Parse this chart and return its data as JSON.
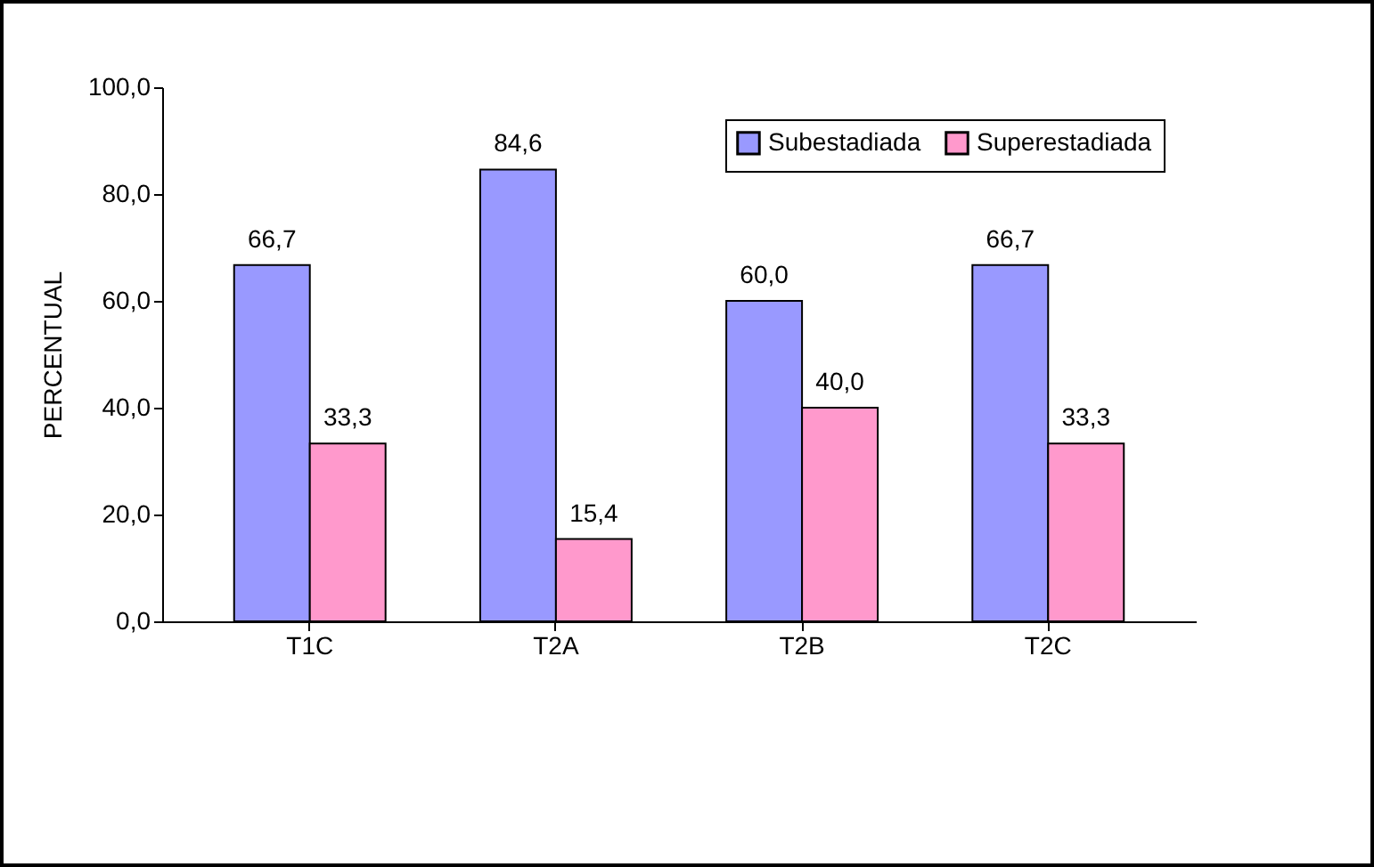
{
  "chart_data": {
    "type": "bar",
    "ylabel": "PERCENTUAL",
    "categories": [
      "T1C",
      "T2A",
      "T2B",
      "T2C"
    ],
    "series": [
      {
        "name": "Subestadiada",
        "color": "#9999ff",
        "values": [
          66.7,
          84.6,
          60.0,
          66.7
        ],
        "value_labels": [
          "66,7",
          "84,6",
          "60,0",
          "66,7"
        ]
      },
      {
        "name": "Superestadiada",
        "color": "#ff99cc",
        "values": [
          33.3,
          15.4,
          40.0,
          33.3
        ],
        "value_labels": [
          "33,3",
          "15,4",
          "40,0",
          "33,3"
        ]
      }
    ],
    "ylim": [
      0,
      100
    ],
    "yticks": [
      {
        "value": 0,
        "label": "0,0"
      },
      {
        "value": 20,
        "label": "20,0"
      },
      {
        "value": 40,
        "label": "40,0"
      },
      {
        "value": 60,
        "label": "60,0"
      },
      {
        "value": 80,
        "label": "80,0"
      },
      {
        "value": 100,
        "label": "100,0"
      }
    ],
    "legend": "top right"
  }
}
